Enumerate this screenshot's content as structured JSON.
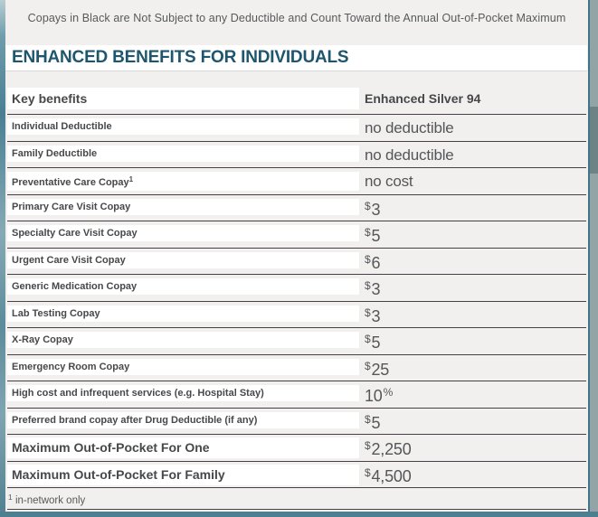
{
  "note": "Copays in Black are Not Subject to any Deductible and Count Toward the Annual Out-of-Pocket Maximum",
  "heading": "ENHANCED BENEFITS FOR INDIVIDUALS",
  "table": {
    "col_benefits": "Key benefits",
    "col_plan": "Enhanced Silver 94",
    "rows": [
      {
        "label": "Individual Deductible",
        "value": "no deductible",
        "plain": true
      },
      {
        "label": "Family Deductible",
        "value": "no deductible",
        "plain": true
      },
      {
        "label": "Preventative Care Copay",
        "label_sup": "1",
        "value": "no cost",
        "plain": true
      },
      {
        "label": "Primary Care Visit Copay",
        "currency": "$",
        "value": "3"
      },
      {
        "label": "Specialty Care Visit Copay",
        "currency": "$",
        "value": "5"
      },
      {
        "label": "Urgent Care Visit Copay",
        "currency": "$",
        "value": "6"
      },
      {
        "label": "Generic Medication Copay",
        "currency": "$",
        "value": "3"
      },
      {
        "label": "Lab Testing Copay",
        "currency": "$",
        "value": "3"
      },
      {
        "label": "X-Ray Copay",
        "currency": "$",
        "value": "5"
      },
      {
        "label": "Emergency Room Copay",
        "currency": "$",
        "value": "25"
      },
      {
        "label": "High cost and infrequent services (e.g. Hospital Stay)",
        "value": "10",
        "suffix": "%"
      },
      {
        "label": "Preferred brand copay after Drug Deductible (if any)",
        "currency": "$",
        "value": "5"
      },
      {
        "label": "Maximum Out-of-Pocket For One",
        "currency": "$",
        "value": "2,250",
        "emphasis": true
      },
      {
        "label": "Maximum Out-of-Pocket For Family",
        "currency": "$",
        "value": "4,500",
        "emphasis": true
      }
    ],
    "footnote_sup": "1",
    "footnote": "in-network only"
  },
  "colors": {
    "accent_teal": "#4d7f91",
    "heading_teal": "#1d566e",
    "row_bg": "#f1f0ee",
    "separator": "#474048",
    "label_text": "#47484a",
    "value_text": "#55565a"
  }
}
